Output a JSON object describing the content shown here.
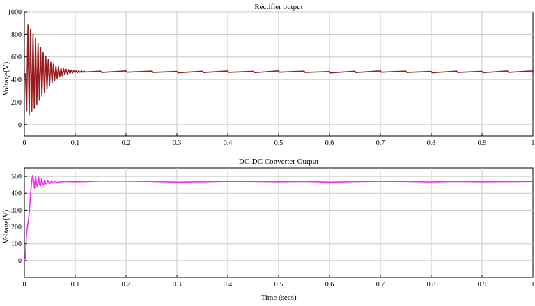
{
  "chart_data": [
    {
      "type": "line",
      "title": "Rectifier output",
      "xlabel": "",
      "ylabel": "Voltage(V)",
      "xlim": [
        0,
        1
      ],
      "ylim": [
        -100,
        1000
      ],
      "xticks": [
        0,
        0.1,
        0.2,
        0.3,
        0.4,
        0.5,
        0.6,
        0.7,
        0.8,
        0.9,
        1
      ],
      "xtick_labels": [
        "0",
        "0.1",
        "0.2",
        "0.3",
        "0.4",
        "0.5",
        "0.6",
        "0.7",
        "0.8",
        "0.9",
        "1"
      ],
      "yticks": [
        0,
        200,
        400,
        600,
        800,
        1000
      ],
      "ytick_labels": [
        "0",
        "200",
        "400",
        "600",
        "800",
        "1000"
      ],
      "grid": true,
      "series": [
        {
          "color": "#9b1c1c",
          "x": [
            0,
            0.004,
            0.008,
            0.012,
            0.016,
            0.02,
            0.024,
            0.028,
            0.032,
            0.036,
            0.04,
            0.044,
            0.048,
            0.052,
            0.056,
            0.06,
            0.064,
            0.068,
            0.072,
            0.076,
            0.08,
            0.085,
            0.09,
            0.095,
            0.1,
            0.11,
            0.12,
            0.15,
            0.2,
            0.25,
            0.3,
            0.35,
            0.4,
            0.45,
            0.5,
            0.55,
            0.6,
            0.65,
            0.7,
            0.75,
            0.8,
            0.85,
            0.9,
            0.95,
            1.0
          ],
          "y": [
            430,
            900,
            60,
            870,
            110,
            820,
            160,
            760,
            210,
            700,
            260,
            650,
            300,
            600,
            340,
            560,
            380,
            530,
            405,
            510,
            425,
            495,
            445,
            485,
            455,
            475,
            465,
            468,
            470,
            468,
            465,
            467,
            469,
            466,
            470,
            468,
            464,
            467,
            470,
            468,
            465,
            468,
            466,
            469,
            470
          ],
          "envelope": {
            "t0": 0.002,
            "period": 0.0025,
            "decay_until": 0.12,
            "points": [
              [
                0.002,
                450
              ],
              [
                0.005,
                900
              ],
              [
                0.01,
                860
              ],
              [
                0.02,
                780
              ],
              [
                0.03,
                700
              ],
              [
                0.04,
                620
              ],
              [
                0.05,
                560
              ],
              [
                0.06,
                525
              ],
              [
                0.07,
                505
              ],
              [
                0.08,
                492
              ],
              [
                0.09,
                485
              ],
              [
                0.1,
                478
              ],
              [
                0.12,
                474
              ]
            ],
            "lows": [
              [
                0.002,
                450
              ],
              [
                0.005,
                60
              ],
              [
                0.01,
                90
              ],
              [
                0.02,
                150
              ],
              [
                0.03,
                220
              ],
              [
                0.04,
                290
              ],
              [
                0.05,
                350
              ],
              [
                0.06,
                395
              ],
              [
                0.07,
                425
              ],
              [
                0.08,
                443
              ],
              [
                0.09,
                452
              ],
              [
                0.1,
                460
              ],
              [
                0.12,
                466
              ]
            ],
            "ripple": 6
          }
        }
      ]
    },
    {
      "type": "line",
      "title": "DC-DC Converter Output",
      "xlabel": "Time (secs)",
      "ylabel": "Voltage(V)",
      "xlim": [
        0,
        1
      ],
      "ylim": [
        -100,
        550
      ],
      "xticks": [
        0,
        0.1,
        0.2,
        0.3,
        0.4,
        0.5,
        0.6,
        0.7,
        0.8,
        0.9,
        1
      ],
      "xtick_labels": [
        "0",
        "0.1",
        "0.2",
        "0.3",
        "0.4",
        "0.5",
        "0.6",
        "0.7",
        "0.8",
        "0.9",
        "1"
      ],
      "yticks": [
        0,
        100,
        200,
        300,
        400,
        500
      ],
      "ytick_labels": [
        "0",
        "100",
        "200",
        "300",
        "400",
        "500"
      ],
      "grid": true,
      "series": [
        {
          "color": "#ff22ff",
          "x": [
            0,
            0.002,
            0.004,
            0.006,
            0.008,
            0.01,
            0.012,
            0.014,
            0.016,
            0.018,
            0.02,
            0.022,
            0.024,
            0.026,
            0.028,
            0.03,
            0.032,
            0.034,
            0.036,
            0.038,
            0.04,
            0.042,
            0.044,
            0.046,
            0.048,
            0.05,
            0.053,
            0.056,
            0.06,
            0.065,
            0.07,
            0.08,
            0.1,
            0.15,
            0.2,
            0.25,
            0.3,
            0.35,
            0.4,
            0.45,
            0.5,
            0.55,
            0.6,
            0.65,
            0.7,
            0.75,
            0.8,
            0.85,
            0.9,
            0.95,
            1.0
          ],
          "y": [
            0,
            20,
            150,
            200,
            240,
            300,
            390,
            460,
            505,
            480,
            430,
            500,
            450,
            440,
            495,
            450,
            445,
            485,
            455,
            450,
            480,
            458,
            455,
            477,
            460,
            458,
            474,
            462,
            472,
            464,
            468,
            470,
            468,
            472,
            472,
            470,
            466,
            468,
            471,
            470,
            468,
            470,
            466,
            469,
            471,
            470,
            467,
            470,
            468,
            469,
            470
          ]
        }
      ]
    }
  ]
}
